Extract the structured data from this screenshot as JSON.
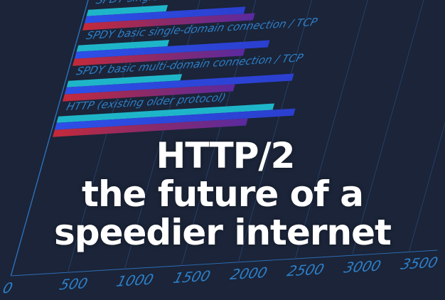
{
  "headline": {
    "line1": "HTTP/2",
    "line2": "the future of a",
    "line3": "speedier internet"
  },
  "chart_data": {
    "type": "bar",
    "orientation": "horizontal",
    "categories": [
      "SPDY single-domain connection",
      "SPDY basic single-domain connection / TCP",
      "SPDY basic multi-domain connection / TCP",
      "HTTP (existing older protocol)"
    ],
    "x_ticks": [
      "0",
      "500",
      "1000",
      "1500",
      "2000",
      "2500",
      "3000",
      "3500"
    ],
    "xlim": [
      0,
      3500
    ],
    "grid": true,
    "series": [
      {
        "color": "#1fb5c9",
        "values": [
          700,
          800,
          1000,
          1900
        ]
      },
      {
        "color": "#2a4fe0",
        "values": [
          1400,
          1700,
          2000,
          2100
        ]
      },
      {
        "color": "#7a2a9a",
        "values": [
          1500,
          1500,
          1500,
          1700
        ]
      }
    ]
  },
  "colors": {
    "background": "#1b2438",
    "axis_text": "#2d7fc8",
    "grid": "#26406a",
    "title": "#ffffff"
  }
}
